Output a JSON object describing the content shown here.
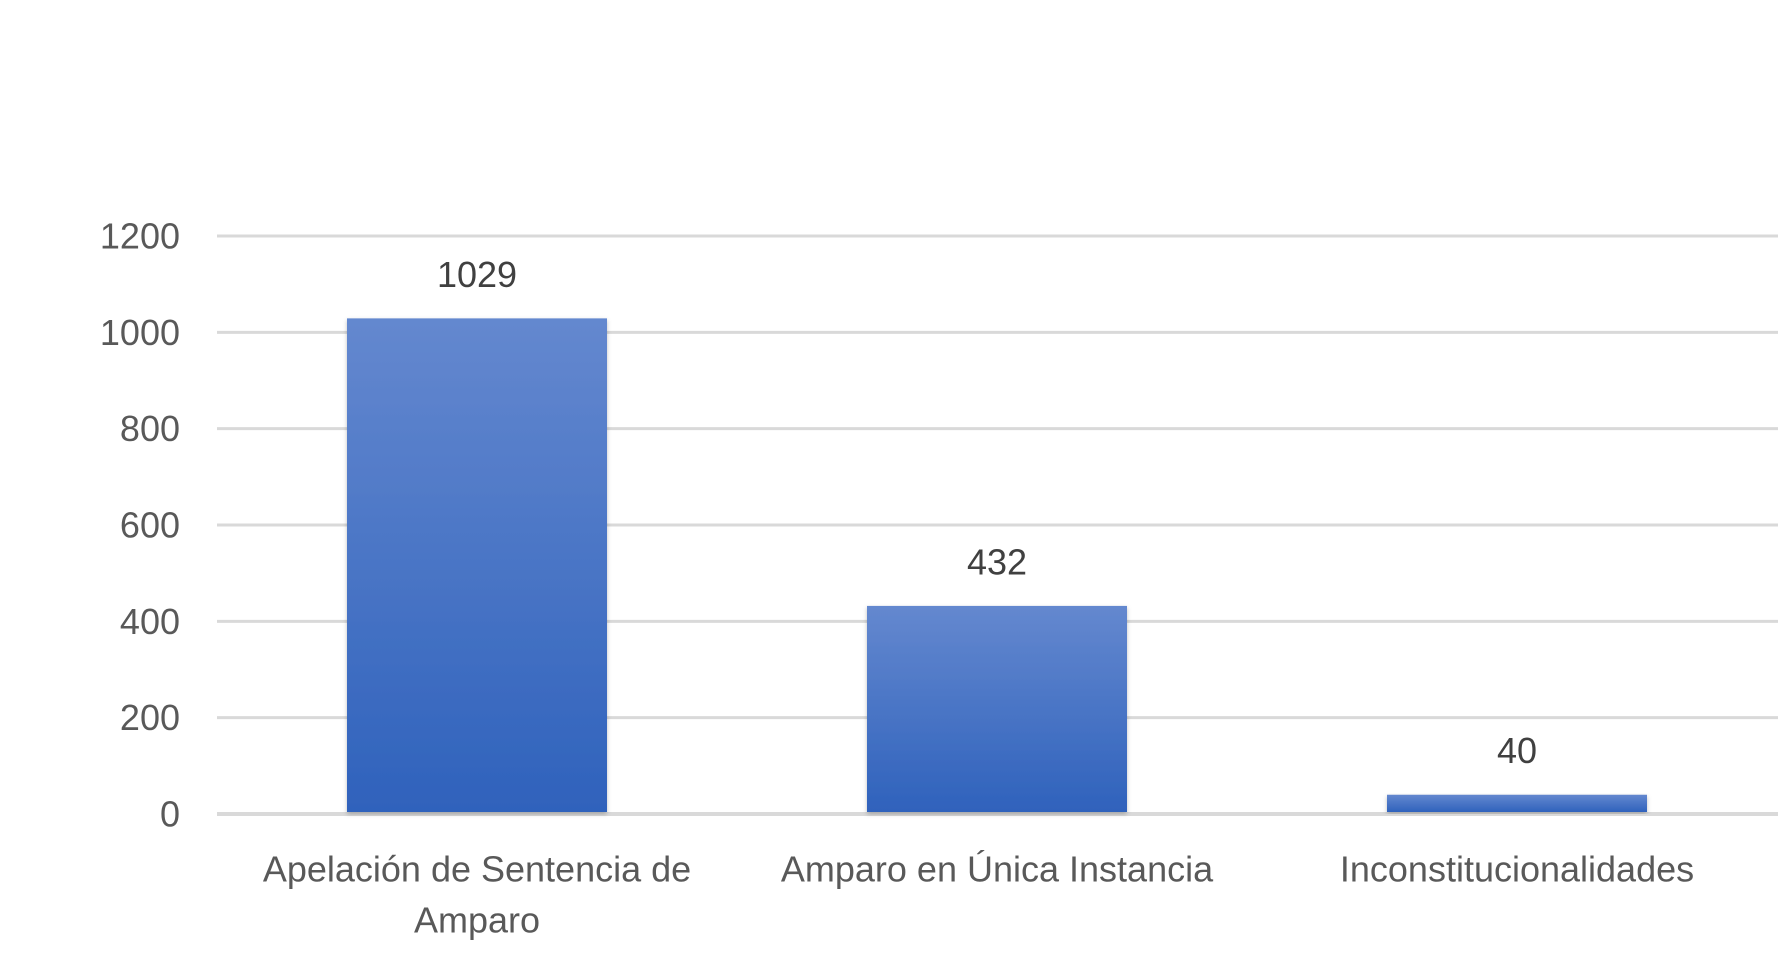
{
  "chart_data": {
    "type": "bar",
    "title": "",
    "xlabel": "",
    "ylabel": "",
    "categories": [
      [
        "Apelación de Sentencia de",
        "Amparo"
      ],
      [
        "Amparo en Única Instancia"
      ],
      [
        "Inconstitucionalidades"
      ]
    ],
    "values": [
      1029,
      432,
      40
    ],
    "data_labels": [
      "1029",
      "432",
      "40"
    ],
    "ylim": [
      0,
      1200
    ],
    "yticks": [
      0,
      200,
      400,
      600,
      800,
      1000,
      1200
    ],
    "ytick_labels": [
      "0",
      "200",
      "400",
      "600",
      "800",
      "1000",
      "1200"
    ],
    "grid": true,
    "legend": "none",
    "bar_color_top": "#6488cf",
    "bar_color_bottom": "#2f62bc"
  }
}
